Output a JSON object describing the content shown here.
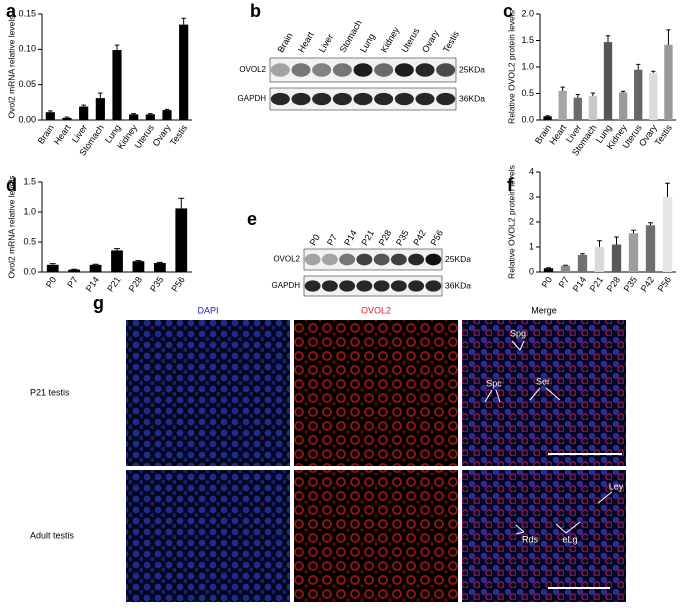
{
  "chart_data": [
    {
      "type": "bar",
      "label": "a",
      "ylabel": "Ovol2 mRNA relative levels",
      "categories": [
        "Brain",
        "Heart",
        "Liver",
        "Stomach",
        "Lung",
        "Kidney",
        "Uterus",
        "Ovary",
        "Testis"
      ],
      "values": [
        0.011,
        0.003,
        0.019,
        0.031,
        0.099,
        0.008,
        0.008,
        0.014,
        0.135
      ],
      "errors": [
        0.002,
        0.001,
        0.002,
        0.007,
        0.007,
        0.001,
        0.001,
        0.001,
        0.009
      ],
      "color": "#000000",
      "ylim": [
        0,
        0.15
      ],
      "yticks": [
        {
          "value": 0,
          "label": "0.00"
        },
        {
          "value": 0.05,
          "label": "0.05"
        },
        {
          "value": 0.1,
          "label": "0.10"
        },
        {
          "value": 0.15,
          "label": "0.15"
        }
      ]
    },
    {
      "type": "bar",
      "label": "c",
      "ylabel": "Relative OVOL2 protein levels",
      "categories": [
        "Brain",
        "Heart",
        "Liver",
        "Stomach",
        "Lung",
        "Kidney",
        "Uterus",
        "Ovary",
        "Testis"
      ],
      "values": [
        0.07,
        0.55,
        0.42,
        0.45,
        1.47,
        0.52,
        0.95,
        0.89,
        1.42
      ],
      "errors": [
        0.01,
        0.07,
        0.06,
        0.06,
        0.12,
        0.02,
        0.1,
        0.03,
        0.28
      ],
      "colors": [
        "#000000",
        "#a6a6a6",
        "#6b6b6b",
        "#c8c8c8",
        "#555555",
        "#9a9a9a",
        "#666666",
        "#dcdcdc",
        "#999999"
      ],
      "ylim": [
        0,
        2
      ],
      "yticks": [
        {
          "value": 0,
          "label": "0.0"
        },
        {
          "value": 0.5,
          "label": "0.5"
        },
        {
          "value": 1,
          "label": "1.0"
        },
        {
          "value": 1.5,
          "label": "1.5"
        },
        {
          "value": 2,
          "label": "2.0"
        }
      ]
    },
    {
      "type": "bar",
      "label": "d",
      "ylabel": "Ovol2 mRNA relative levels",
      "categories": [
        "P0",
        "P7",
        "P14",
        "P21",
        "P28",
        "P35",
        "P56"
      ],
      "values": [
        0.12,
        0.04,
        0.12,
        0.36,
        0.18,
        0.15,
        1.06
      ],
      "errors": [
        0.02,
        0.005,
        0.01,
        0.03,
        0.01,
        0.01,
        0.17
      ],
      "color": "#000000",
      "ylim": [
        0,
        1.5
      ],
      "yticks": [
        {
          "value": 0,
          "label": "0.0"
        },
        {
          "value": 0.5,
          "label": "0.5"
        },
        {
          "value": 1,
          "label": "1.0"
        },
        {
          "value": 1.5,
          "label": "1.5"
        }
      ]
    },
    {
      "type": "bar",
      "label": "f",
      "ylabel": "Relative OVOL2 protein levels",
      "categories": [
        "P0",
        "P7",
        "P14",
        "P21",
        "P28",
        "P35",
        "P42",
        "P56"
      ],
      "values": [
        0.15,
        0.25,
        0.68,
        1.0,
        1.1,
        1.55,
        1.87,
        3.0
      ],
      "errors": [
        0.02,
        0.02,
        0.05,
        0.25,
        0.3,
        0.12,
        0.1,
        0.55
      ],
      "colors": [
        "#000000",
        "#8c8c8c",
        "#707070",
        "#d9d9d9",
        "#595959",
        "#9e9e9e",
        "#6e6e6e",
        "#e6e6e6"
      ],
      "ylim": [
        0,
        4
      ],
      "yticks": [
        0,
        1,
        2,
        3,
        4
      ]
    }
  ],
  "blots": [
    {
      "label": "b",
      "lanes": [
        "Brain",
        "Heart",
        "Liver",
        "Stomach",
        "Lung",
        "Kidney",
        "Uterus",
        "Ovary",
        "Testis"
      ],
      "rows": [
        {
          "name": "OVOL2",
          "size": "25KDa"
        },
        {
          "name": "GAPDH",
          "size": "36KDa"
        }
      ]
    },
    {
      "label": "e",
      "lanes": [
        "P0",
        "P7",
        "P14",
        "P21",
        "P28",
        "P35",
        "P42",
        "P56"
      ],
      "rows": [
        {
          "name": "OVOL2",
          "size": "25KDa"
        },
        {
          "name": "GAPDH",
          "size": "36KDa"
        }
      ]
    }
  ],
  "micrograph": {
    "label": "g",
    "columns": [
      "DAPI",
      "OVOL2",
      "Merge"
    ],
    "rows": [
      "P21 testis",
      "Adult testis"
    ],
    "annotations": [
      "Spg",
      "Spc",
      "Ser",
      "Ley",
      "Rds",
      "eLg"
    ]
  }
}
